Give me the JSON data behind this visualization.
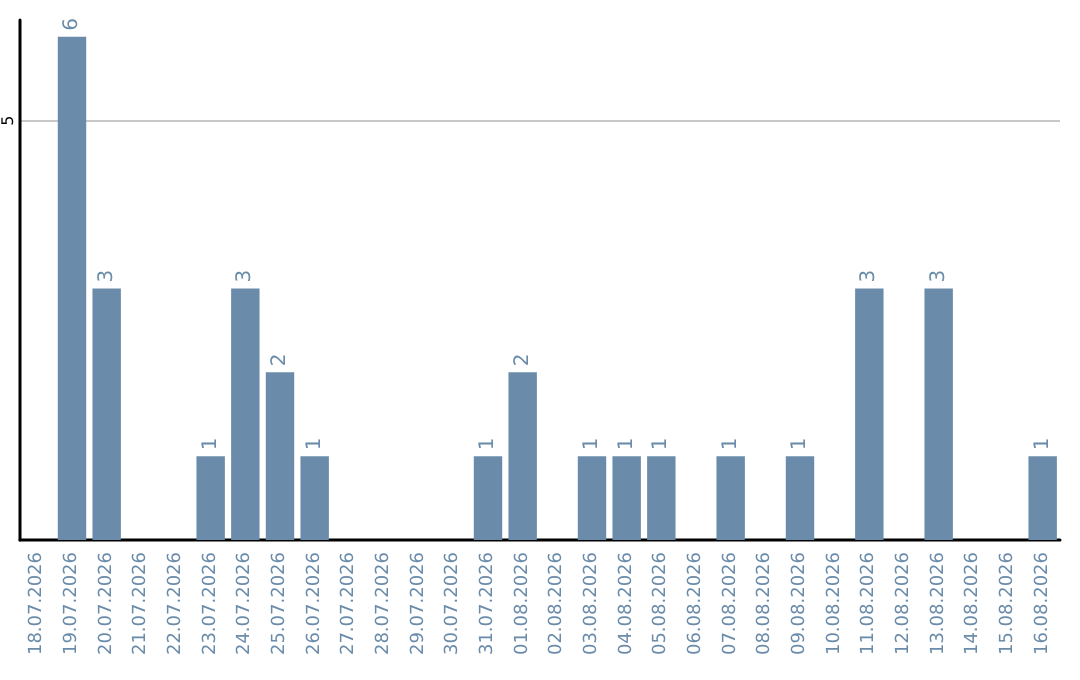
{
  "chart_data": {
    "type": "bar",
    "categories": [
      "18.07.2026",
      "19.07.2026",
      "20.07.2026",
      "21.07.2026",
      "22.07.2026",
      "23.07.2026",
      "24.07.2026",
      "25.07.2026",
      "26.07.2026",
      "27.07.2026",
      "28.07.2026",
      "29.07.2026",
      "30.07.2026",
      "31.07.2026",
      "01.08.2026",
      "02.08.2026",
      "03.08.2026",
      "04.08.2026",
      "05.08.2026",
      "06.08.2026",
      "07.08.2026",
      "08.08.2026",
      "09.08.2026",
      "10.08.2026",
      "11.08.2026",
      "12.08.2026",
      "13.08.2026",
      "14.08.2026",
      "15.08.2026",
      "16.08.2026"
    ],
    "values": [
      0,
      6,
      3,
      0,
      0,
      1,
      3,
      2,
      1,
      0,
      0,
      0,
      0,
      1,
      2,
      0,
      1,
      1,
      1,
      0,
      1,
      0,
      1,
      0,
      3,
      0,
      3,
      0,
      0,
      1
    ],
    "value_labels": [
      null,
      "6",
      "3",
      null,
      null,
      "1",
      "3",
      "2",
      "1",
      null,
      null,
      null,
      null,
      "1",
      "2",
      null,
      "1",
      "1",
      "1",
      null,
      "1",
      null,
      "1",
      null,
      "3",
      null,
      "3",
      null,
      null,
      "1"
    ],
    "color": "#6a8caa",
    "ylim": [
      0,
      6.2
    ],
    "yticks": [
      5
    ],
    "grid": "y"
  }
}
